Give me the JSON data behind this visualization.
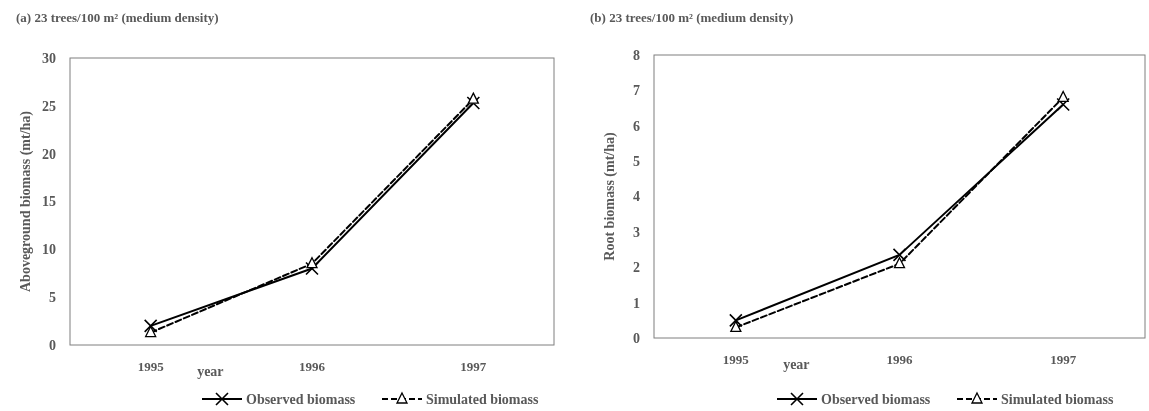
{
  "chart_data": [
    {
      "type": "line",
      "title": "(a) 23 trees/100 m² (medium density)",
      "xlabel": "year",
      "ylabel": "Aboveground biomass (mt/ha)",
      "categories": [
        "1995",
        "1996",
        "1997"
      ],
      "ylim": [
        0,
        30
      ],
      "yticks": [
        0,
        5,
        10,
        15,
        20,
        25,
        30
      ],
      "grid": false,
      "legend": "bottom",
      "series": [
        {
          "name": "Observed biomass",
          "color": "#000000",
          "values": [
            2.0,
            8.0,
            25.3
          ],
          "marker": "cross",
          "line_style": "solid"
        },
        {
          "name": "Simulated biomass",
          "color": "#000000",
          "values": [
            1.3,
            8.5,
            25.7
          ],
          "marker": "triangle",
          "line_style": "dashed"
        }
      ]
    },
    {
      "type": "line",
      "title": "(b) 23 trees/100 m² (medium density)",
      "xlabel": "year",
      "ylabel": "Root biomass (mt/ha)",
      "categories": [
        "1995",
        "1996",
        "1997"
      ],
      "ylim": [
        0,
        8
      ],
      "yticks": [
        0,
        1,
        2,
        3,
        4,
        5,
        6,
        7,
        8
      ],
      "grid": false,
      "legend": "bottom",
      "series": [
        {
          "name": "Observed biomass",
          "color": "#000000",
          "values": [
            0.5,
            2.35,
            6.6
          ],
          "marker": "cross",
          "line_style": "solid"
        },
        {
          "name": "Simulated biomass",
          "color": "#000000",
          "values": [
            0.3,
            2.1,
            6.8
          ],
          "marker": "triangle",
          "line_style": "dashed"
        }
      ]
    }
  ]
}
